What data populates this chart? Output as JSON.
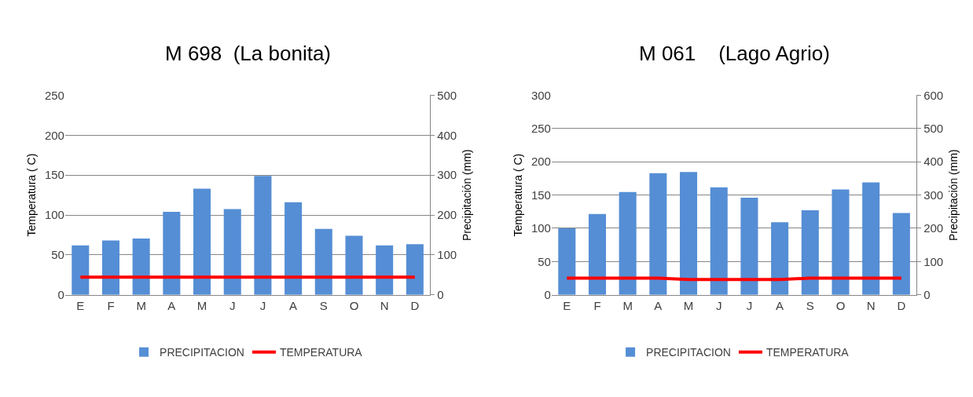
{
  "chart_data": [
    {
      "type": "bar",
      "title": "M 698  (La bonita)",
      "ylabel": "Temperatura ( C)",
      "y2label": "Precipitación (mm)",
      "categories": [
        "E",
        "F",
        "M",
        "A",
        "M",
        "J",
        "J",
        "A",
        "S",
        "O",
        "N",
        "D"
      ],
      "series": [
        {
          "name": "PRECIPITACION",
          "axis": "y2",
          "color": "#558ed5",
          "values": [
            124,
            136,
            141,
            208,
            266,
            215,
            298,
            232,
            165,
            148,
            124,
            127
          ]
        },
        {
          "name": "TEMPERATURA",
          "type": "line",
          "axis": "y",
          "color": "#ff0000",
          "values": [
            22,
            22,
            22,
            22,
            22,
            22,
            22,
            22,
            22,
            22,
            22,
            22
          ]
        }
      ],
      "ylim": [
        0,
        250
      ],
      "yticks": [
        0,
        50,
        100,
        150,
        200,
        250
      ],
      "y2lim": [
        0,
        500
      ],
      "y2ticks": [
        0,
        100,
        200,
        300,
        400,
        500
      ],
      "grid": "y",
      "legend": "bottom",
      "marker": "none",
      "line_style": "solid"
    },
    {
      "type": "bar",
      "title": "M 061    (Lago Agrio)",
      "ylabel": "Temperatura ( C)",
      "y2label": "Precipitación (mm)",
      "categories": [
        "E",
        "F",
        "M",
        "A",
        "M",
        "J",
        "J",
        "A",
        "S",
        "O",
        "N",
        "D"
      ],
      "series": [
        {
          "name": "PRECIPITACION",
          "axis": "y2",
          "color": "#558ed5",
          "values": [
            200,
            243,
            309,
            366,
            369,
            323,
            292,
            218,
            254,
            317,
            338,
            246
          ]
        },
        {
          "name": "TEMPERATURA",
          "type": "line",
          "axis": "y",
          "color": "#ff0000",
          "values": [
            25,
            25,
            25,
            25,
            23,
            23,
            23,
            23,
            25,
            25,
            25,
            25
          ]
        }
      ],
      "ylim": [
        0,
        300
      ],
      "yticks": [
        0,
        50,
        100,
        150,
        200,
        250,
        300
      ],
      "y2lim": [
        0,
        600
      ],
      "y2ticks": [
        0,
        100,
        200,
        300,
        400,
        500,
        600
      ],
      "grid": "y",
      "legend": "bottom",
      "marker": "none",
      "line_style": "solid"
    }
  ]
}
